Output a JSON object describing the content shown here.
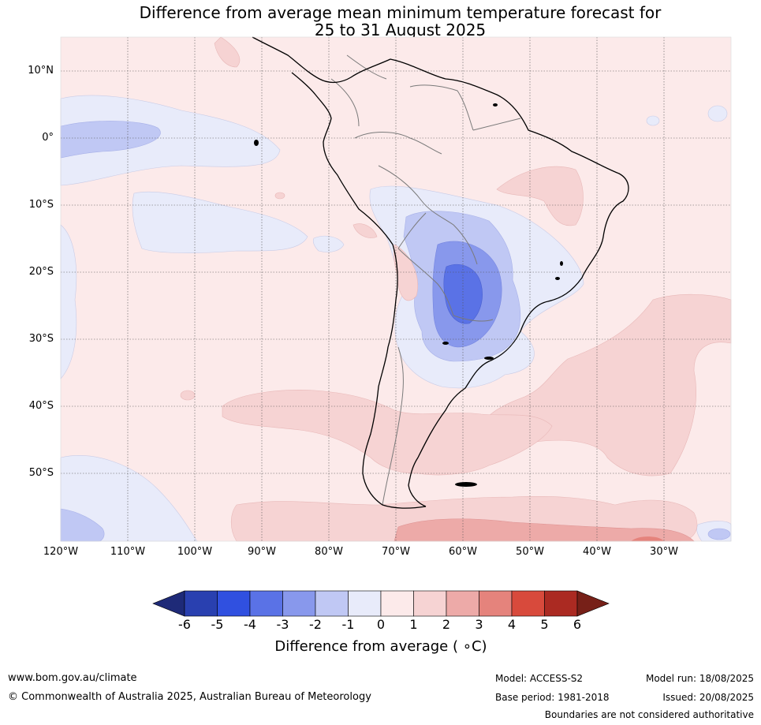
{
  "title": {
    "line1": "Difference from average mean minimum temperature forecast for",
    "line2": "25 to 31 August 2025"
  },
  "map": {
    "lat_labels": [
      "10°N",
      "0°",
      "10°S",
      "20°S",
      "30°S",
      "40°S",
      "50°S"
    ],
    "lon_labels": [
      "120°W",
      "110°W",
      "100°W",
      "90°W",
      "80°W",
      "70°W",
      "60°W",
      "50°W",
      "40°W",
      "30°W"
    ],
    "anomaly_features": [
      {
        "label": "strongest cold anomaly",
        "center_lon": -60,
        "center_lat": -23,
        "value_c": -3
      },
      {
        "label": "warm anomaly far south",
        "center_lon": -45,
        "center_lat": -58,
        "value_c": 2
      }
    ]
  },
  "colorbar": {
    "title": "Difference from average ( ∘C)",
    "tick_labels": [
      "-6",
      "-5",
      "-4",
      "-3",
      "-2",
      "-1",
      "0",
      "1",
      "2",
      "3",
      "4",
      "5",
      "6"
    ],
    "colors": [
      "#1e2a78",
      "#2940b0",
      "#3050e0",
      "#5a72e6",
      "#8898ec",
      "#c0c8f4",
      "#e8ebfa",
      "#fceaea",
      "#f6d3d3",
      "#edaaa8",
      "#e5837c",
      "#d84a3c",
      "#ab2a22",
      "#772018"
    ]
  },
  "footer": {
    "url": "www.bom.gov.au/climate",
    "copyright": "© Commonwealth of Australia 2025, Australian Bureau of Meteorology",
    "model": "Model: ACCESS-S2",
    "base_period": "Base period: 1981-2018",
    "model_run": "Model run: 18/08/2025",
    "issued": "Issued: 20/08/2025",
    "disclaimer": "Boundaries are not considered authoritative"
  }
}
